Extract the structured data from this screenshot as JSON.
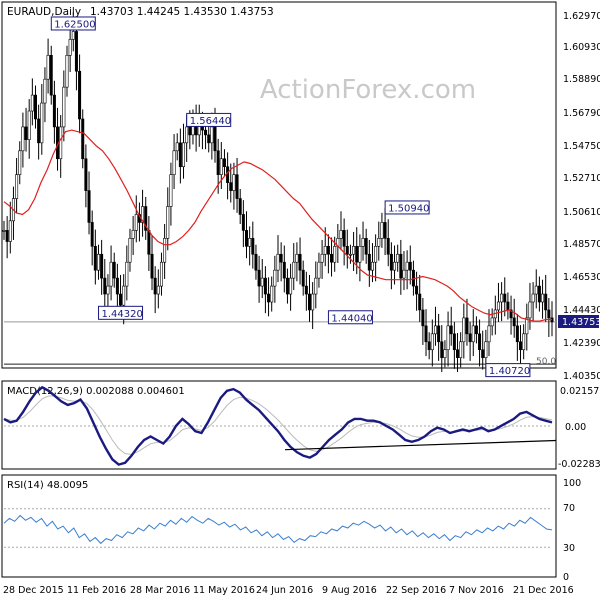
{
  "chart_data": [
    {
      "type": "candlestick",
      "header": {
        "symbol": "EURAUD,Daily",
        "ohlc": "1.43703 1.44245 1.43530 1.43753"
      },
      "watermark": "ActionForex.com",
      "y_ticks": [
        "1.62970",
        "1.60930",
        "1.58890",
        "1.56790",
        "1.54750",
        "1.52710",
        "1.50610",
        "1.48570",
        "1.46530",
        "1.44430",
        "1.42390",
        "1.40350"
      ],
      "ylim": [
        1.4035,
        1.6297
      ],
      "current_price_label": "1.43753",
      "fib_label": "50.0",
      "fib_level": 1.411,
      "annotations": [
        {
          "label": "1.62500",
          "date_index": 22,
          "price": 1.625
        },
        {
          "label": "1.44320",
          "date_index": 37,
          "price": 1.4432
        },
        {
          "label": "1.56440",
          "date_index": 65,
          "price": 1.5644
        },
        {
          "label": "1.44040",
          "date_index": 110,
          "price": 1.4404
        },
        {
          "label": "1.50940",
          "date_index": 128,
          "price": 1.5094
        },
        {
          "label": "1.40720",
          "date_index": 160,
          "price": 1.4072
        }
      ],
      "series": [
        {
          "name": "close",
          "values": [
            1.495,
            1.488,
            1.501,
            1.515,
            1.53,
            1.545,
            1.56,
            1.552,
            1.57,
            1.58,
            1.565,
            1.55,
            1.575,
            1.59,
            1.605,
            1.58,
            1.56,
            1.54,
            1.56,
            1.585,
            1.605,
            1.615,
            1.62,
            1.595,
            1.565,
            1.54,
            1.52,
            1.5,
            1.485,
            1.47,
            1.48,
            1.465,
            1.455,
            1.46,
            1.475,
            1.465,
            1.455,
            1.448,
            1.46,
            1.475,
            1.49,
            1.495,
            1.505,
            1.5,
            1.51,
            1.495,
            1.48,
            1.465,
            1.455,
            1.46,
            1.475,
            1.49,
            1.51,
            1.53,
            1.545,
            1.55,
            1.535,
            1.55,
            1.56,
            1.555,
            1.565,
            1.555,
            1.562,
            1.558,
            1.555,
            1.55,
            1.56,
            1.545,
            1.53,
            1.54,
            1.535,
            1.525,
            1.52,
            1.53,
            1.515,
            1.505,
            1.495,
            1.485,
            1.49,
            1.48,
            1.47,
            1.46,
            1.465,
            1.455,
            1.45,
            1.46,
            1.47,
            1.48,
            1.475,
            1.465,
            1.455,
            1.465,
            1.475,
            1.48,
            1.47,
            1.46,
            1.455,
            1.445,
            1.455,
            1.465,
            1.475,
            1.48,
            1.485,
            1.48,
            1.475,
            1.485,
            1.49,
            1.495,
            1.485,
            1.48,
            1.48,
            1.485,
            1.475,
            1.485,
            1.49,
            1.48,
            1.47,
            1.475,
            1.485,
            1.49,
            1.5,
            1.49,
            1.48,
            1.47,
            1.475,
            1.48,
            1.465,
            1.47,
            1.475,
            1.47,
            1.46,
            1.455,
            1.445,
            1.435,
            1.425,
            1.42,
            1.43,
            1.435,
            1.425,
            1.415,
            1.42,
            1.435,
            1.43,
            1.42,
            1.415,
            1.425,
            1.44,
            1.43,
            1.425,
            1.435,
            1.43,
            1.42,
            1.415,
            1.425,
            1.435,
            1.44,
            1.445,
            1.45,
            1.455,
            1.45,
            1.445,
            1.44,
            1.435,
            1.425,
            1.42,
            1.43,
            1.44,
            1.45,
            1.455,
            1.46,
            1.45,
            1.455,
            1.445,
            1.44,
            1.4375
          ]
        },
        {
          "name": "ma",
          "values": [
            1.513,
            1.51,
            1.506,
            1.505,
            1.508,
            1.515,
            1.525,
            1.533,
            1.543,
            1.551,
            1.557,
            1.558,
            1.557,
            1.556,
            1.552,
            1.548,
            1.545,
            1.54,
            1.534,
            1.527,
            1.52,
            1.512,
            1.504,
            1.498,
            1.492,
            1.488,
            1.486,
            1.486,
            1.488,
            1.491,
            1.495,
            1.5,
            1.507,
            1.513,
            1.519,
            1.525,
            1.53,
            1.534,
            1.536,
            1.538,
            1.537,
            1.535,
            1.533,
            1.53,
            1.527,
            1.523,
            1.519,
            1.515,
            1.512,
            1.507,
            1.502,
            1.498,
            1.494,
            1.49,
            1.486,
            1.482,
            1.478,
            1.474,
            1.47,
            1.467,
            1.466,
            1.465,
            1.464,
            1.464,
            1.464,
            1.464,
            1.464,
            1.465,
            1.466,
            1.465,
            1.464,
            1.462,
            1.46,
            1.457,
            1.453,
            1.45,
            1.447,
            1.445,
            1.443,
            1.442,
            1.443,
            1.444,
            1.445,
            1.443,
            1.44,
            1.439,
            1.438,
            1.438,
            1.439,
            1.439
          ]
        },
        {
          "name": "macd",
          "values": [
            0.004,
            0.002,
            0.003,
            0.008,
            0.014,
            0.019,
            0.022,
            0.02,
            0.017,
            0.014,
            0.012,
            0.013,
            0.015,
            0.01,
            0.002,
            -0.006,
            -0.013,
            -0.019,
            -0.022,
            -0.021,
            -0.017,
            -0.012,
            -0.008,
            -0.006,
            -0.008,
            -0.01,
            -0.006,
            0.0,
            0.004,
            0.001,
            -0.003,
            -0.004,
            0.002,
            0.009,
            0.016,
            0.02,
            0.021,
            0.019,
            0.015,
            0.012,
            0.009,
            0.005,
            0.001,
            -0.003,
            -0.008,
            -0.012,
            -0.015,
            -0.017,
            -0.018,
            -0.016,
            -0.012,
            -0.008,
            -0.005,
            -0.002,
            0.002,
            0.004,
            0.004,
            0.003,
            0.003,
            0.002,
            0.0,
            -0.002,
            -0.005,
            -0.008,
            -0.009,
            -0.008,
            -0.006,
            -0.003,
            -0.001,
            -0.002,
            -0.004,
            -0.003,
            -0.002,
            -0.003,
            -0.002,
            -0.001,
            -0.003,
            -0.002,
            0.0,
            0.002,
            0.004,
            0.007,
            0.008,
            0.006,
            0.004,
            0.003,
            0.002
          ]
        },
        {
          "name": "rsi",
          "values": [
            55,
            60,
            57,
            63,
            58,
            61,
            56,
            60,
            52,
            57,
            49,
            52,
            45,
            50,
            40,
            44,
            36,
            40,
            34,
            39,
            37,
            43,
            40,
            46,
            44,
            50,
            47,
            53,
            49,
            55,
            52,
            58,
            54,
            60,
            56,
            62,
            58,
            55,
            60,
            57,
            53,
            56,
            51,
            54,
            48,
            51,
            45,
            48,
            42,
            46,
            40,
            44,
            38,
            41,
            35,
            39,
            37,
            42,
            41,
            46,
            44,
            49,
            47,
            52,
            50,
            55,
            53,
            57,
            54,
            50,
            53,
            47,
            51,
            45,
            49,
            43,
            47,
            41,
            45,
            40,
            44,
            39,
            43,
            37,
            42,
            40,
            46,
            43,
            48,
            45,
            50,
            47,
            52,
            49,
            55,
            52,
            58,
            55,
            61,
            57,
            53,
            49,
            48
          ]
        }
      ]
    },
    {
      "type": "line",
      "header": "MACD(12,26,9) 0.002088 0.004601",
      "y_ticks": [
        "0.021577",
        "0.00",
        "-0.022833"
      ],
      "ylim": [
        -0.0228,
        0.0216
      ]
    },
    {
      "type": "line",
      "header": "RSI(14) 48.0095",
      "y_ticks": [
        "100",
        "70",
        "30",
        "0"
      ],
      "ylim": [
        0,
        100
      ],
      "reference_lines": [
        70,
        30
      ]
    }
  ],
  "x_ticks": [
    "28 Dec 2015",
    "11 Feb 2016",
    "28 Mar 2016",
    "11 May 2016",
    "24 Jun 2016",
    "9 Aug 2016",
    "22 Sep 2016",
    "7 Nov 2016",
    "21 Dec 2016"
  ]
}
